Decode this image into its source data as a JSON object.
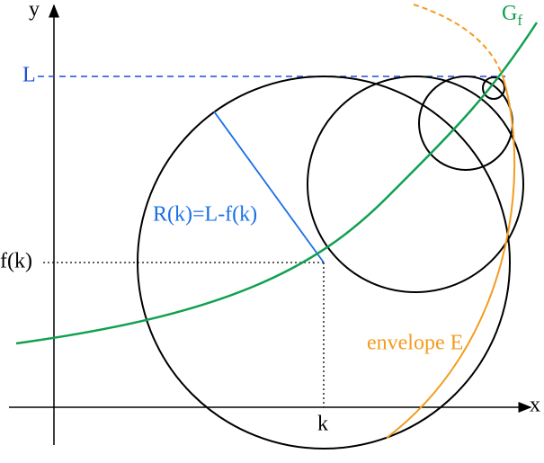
{
  "labels": {
    "y_axis": "y",
    "x_axis": "x",
    "L": "L",
    "fk": "f(k)",
    "k": "k",
    "radius": "R(k)=L-f(k)",
    "graph": "G",
    "graph_subscript": "f",
    "envelope": "envelope E"
  }
}
